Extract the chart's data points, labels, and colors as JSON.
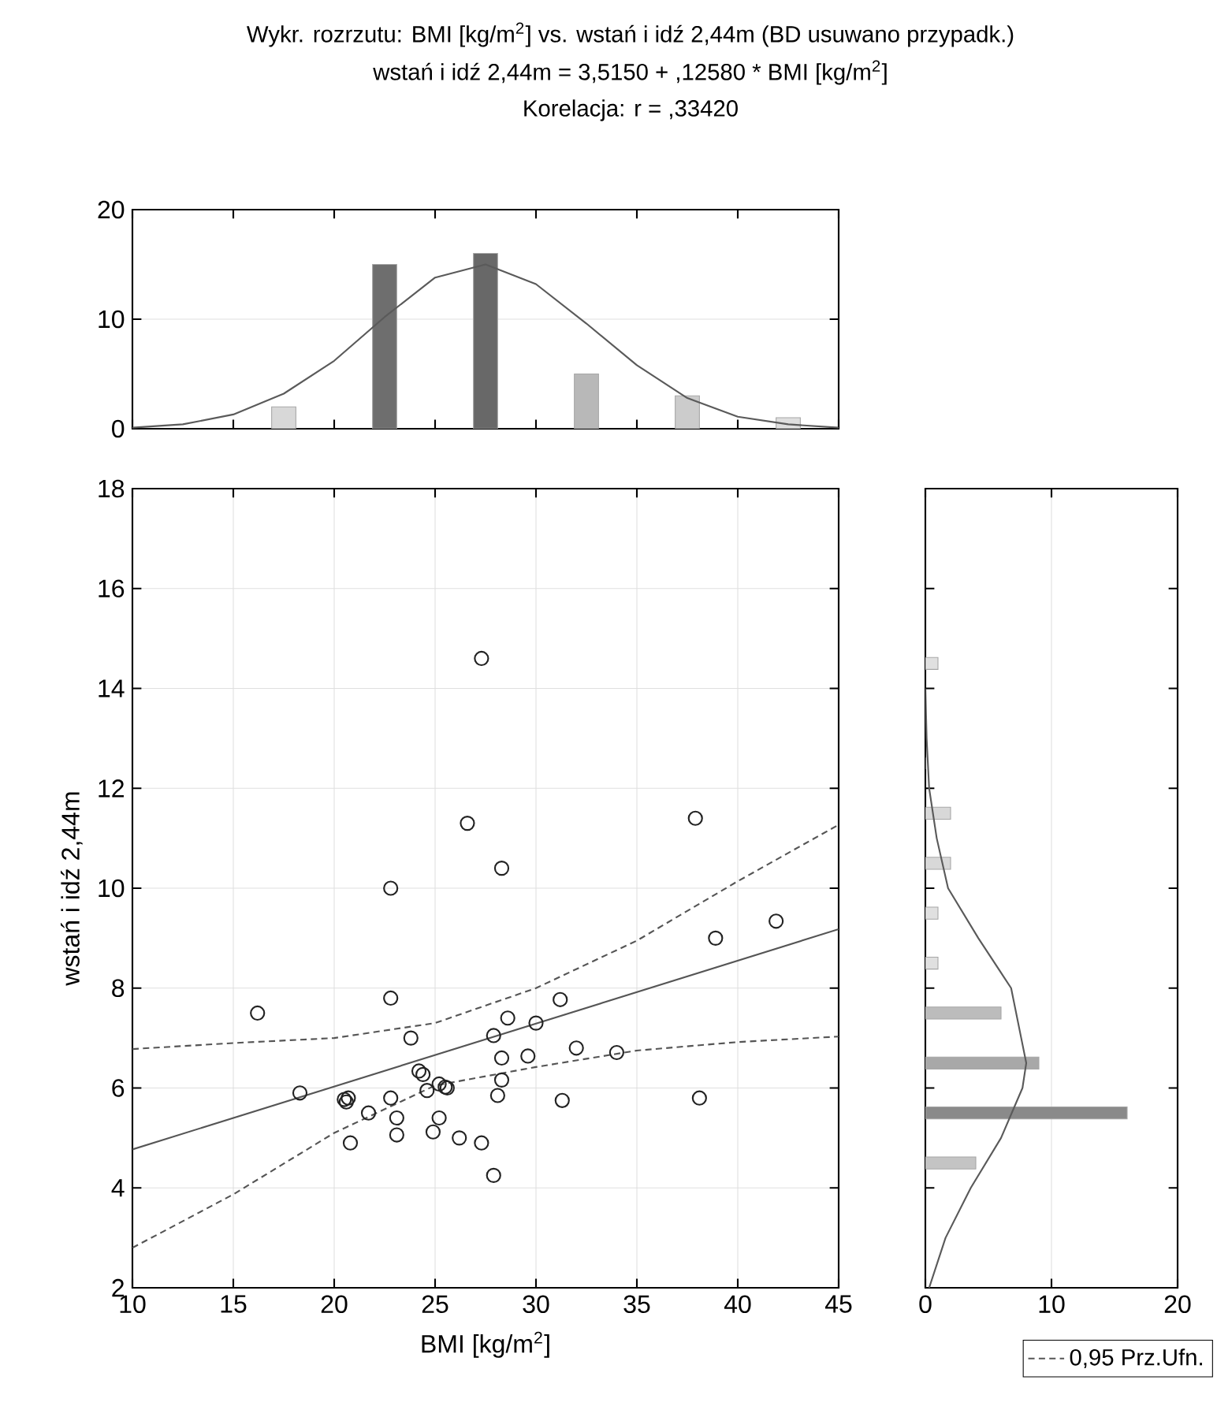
{
  "chart_data": [
    {
      "type": "histogram",
      "title": "Wykr. rozrzutu: BMI [kg/m$^{2}$] vs. wstań i idź 2,44m (BD usuwano przypadk.)",
      "subtitle": "wstań i idź 2,44m = 3,5150 + ,12580 * BMI [kg/m$^{2}$]",
      "annotations": [
        "Korelacja: r =   ,33420"
      ],
      "bins": [
        15,
        20,
        25,
        30,
        35,
        40,
        45
      ],
      "values": [
        2,
        15,
        16,
        5,
        3,
        1
      ],
      "colors": [
        "#d8d8d8",
        "#6e6e6e",
        "#686868",
        "#b8b8b8",
        "#cccccc",
        "#dedede"
      ],
      "xlim": [
        10,
        45
      ],
      "xticks": [
        {
          "value": 10,
          "label": null
        },
        {
          "value": 15,
          "label": null
        },
        {
          "value": 20,
          "label": null
        },
        {
          "value": 25,
          "label": null
        },
        {
          "value": 30,
          "label": null
        },
        {
          "value": 35,
          "label": null
        },
        {
          "value": 40,
          "label": null
        },
        {
          "value": 45,
          "label": null
        }
      ],
      "ylim": [
        0,
        20
      ],
      "yticks": [
        0,
        10,
        20
      ],
      "tick_labels": "y",
      "grid": "y",
      "series": [
        {
          "type": "line",
          "color": "#5a5a5a",
          "x": [
            10,
            12.5,
            15,
            17.5,
            20,
            22.5,
            25,
            27.5,
            30,
            32.5,
            35,
            37.5,
            40,
            42.5,
            45
          ],
          "values": [
            0.1,
            0.4,
            1.3,
            3.2,
            6.2,
            10.2,
            13.8,
            15,
            13.2,
            9.6,
            5.8,
            2.8,
            1.1,
            0.4,
            0.1
          ]
        }
      ]
    },
    {
      "type": "scatter",
      "xlabel": "BMI [kg/m$^{2}$]",
      "ylabel": "wstań i idź 2,44m",
      "xlim": [
        10,
        45
      ],
      "xticks": [
        10,
        15,
        20,
        25,
        30,
        35,
        40,
        45
      ],
      "ylim": [
        2,
        18
      ],
      "yticks": [
        2,
        4,
        6,
        8,
        10,
        12,
        14,
        16,
        18
      ],
      "grid": true,
      "legend": "bottom right",
      "series": [
        {
          "type": "scatter",
          "marker": "circle",
          "color": "#222222",
          "x": [
            27.3,
            26.6,
            28.3,
            22.8,
            16.2,
            22.8,
            28.6,
            30.0,
            27.9,
            23.8,
            18.3,
            20.5,
            20.7,
            20.6,
            21.7,
            20.8,
            22.8,
            23.1,
            23.1,
            24.2,
            24.4,
            24.6,
            25.2,
            25.5,
            25.6,
            25.2,
            24.9,
            26.2,
            27.3,
            27.9,
            28.1,
            28.3,
            28.3,
            29.6,
            37.9,
            38.9,
            41.9,
            31.2,
            32.0,
            34.0,
            31.3,
            38.1
          ],
          "values": [
            14.6,
            11.3,
            10.4,
            10.0,
            7.5,
            7.8,
            7.4,
            7.3,
            7.05,
            7.0,
            5.9,
            5.77,
            5.8,
            5.72,
            5.5,
            4.9,
            5.8,
            5.4,
            5.06,
            6.34,
            6.27,
            5.95,
            6.08,
            6.02,
            6.0,
            5.4,
            5.12,
            5.0,
            4.9,
            4.25,
            5.85,
            6.16,
            6.6,
            6.64,
            11.4,
            9.0,
            9.34,
            7.77,
            6.8,
            6.71,
            5.75,
            5.8
          ]
        },
        {
          "type": "line",
          "color": "#555555",
          "x": [
            10,
            45
          ],
          "values": [
            4.77,
            9.18
          ]
        },
        {
          "type": "line",
          "name": "0,95 Prz.Ufn.",
          "color": "#555555",
          "line_style": "dashed",
          "x": [
            10,
            15,
            20,
            25,
            30,
            35,
            40,
            45
          ],
          "values": [
            6.78,
            6.9,
            7.0,
            7.3,
            8.0,
            8.95,
            10.14,
            11.27
          ]
        },
        {
          "type": "line",
          "color": "#555555",
          "line_style": "dashed",
          "x": [
            10,
            15,
            20,
            25,
            30,
            35,
            40,
            45
          ],
          "values": [
            2.8,
            3.87,
            5.1,
            6.05,
            6.42,
            6.75,
            6.92,
            7.03
          ]
        }
      ]
    },
    {
      "type": "histogram",
      "orientation": "horizontal",
      "bins": [
        4,
        5,
        6,
        7,
        8,
        9,
        10,
        11,
        12,
        13,
        14,
        15
      ],
      "values": [
        4,
        16,
        9,
        6,
        1,
        1,
        2,
        2,
        0,
        0,
        1
      ],
      "colors": [
        "#c4c4c4",
        "#8a8a8a",
        "#a8a8a8",
        "#bcbcbc",
        "#e0e0e0",
        "#e0e0e0",
        "#d8d8d8",
        "#d8d8d8",
        "#e0e0e0",
        "#e0e0e0",
        "#e0e0e0"
      ],
      "xlim": [
        0,
        20
      ],
      "xticks": [
        0,
        10,
        20
      ],
      "ylim": [
        2,
        18
      ],
      "yticks": [
        {
          "value": 2,
          "label": null
        },
        {
          "value": 4,
          "label": null
        },
        {
          "value": 6,
          "label": null
        },
        {
          "value": 8,
          "label": null
        },
        {
          "value": 10,
          "label": null
        },
        {
          "value": 12,
          "label": null
        },
        {
          "value": 14,
          "label": null
        },
        {
          "value": 16,
          "label": null
        },
        {
          "value": 18,
          "label": null
        }
      ],
      "tick_labels": "x",
      "grid": "x",
      "series": [
        {
          "type": "line",
          "color": "#5a5a5a",
          "x": [
            2,
            3,
            4,
            5,
            6,
            6.5,
            7,
            8,
            9,
            10,
            11,
            12,
            13,
            14
          ],
          "values": [
            0.3,
            1.6,
            3.6,
            6.0,
            7.7,
            8.0,
            7.6,
            6.8,
            4.2,
            1.8,
            0.9,
            0.3,
            0.1,
            0
          ]
        }
      ]
    }
  ]
}
